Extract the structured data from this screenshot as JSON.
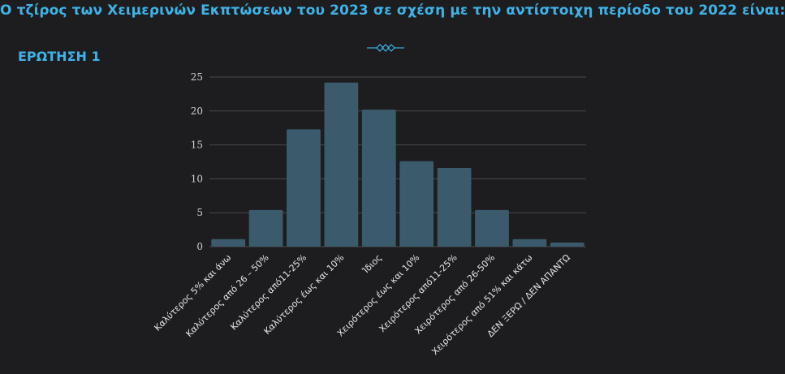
{
  "title": "Ο τζίρος των Χειμερινών Εκπτώσεων του 2023 σε σχέση με την αντίστοιχη περίοδο του 2022 είναι:",
  "question_label": "ΕΡΩΤΗΣΗ 1",
  "colors": {
    "accent": "#3fb3e8",
    "bar": "#3b5b6c",
    "grid": "#4a4a4e",
    "background": "#1d1d1f"
  },
  "chart_data": {
    "type": "bar",
    "title": "",
    "xlabel": "",
    "ylabel": "",
    "ylim": [
      0,
      25
    ],
    "yticks": [
      0,
      5,
      10,
      15,
      20,
      25
    ],
    "grid": true,
    "categories": [
      "Καλύτερος 5% και άνω",
      "Καλύτερος από 26 – 50%",
      "Καλύτερος από11-25%",
      "Καλύτερος έως και 10%",
      "Ίδιος",
      "Χειρότερος έως και 10%",
      "Χειρότερος από11-25%",
      "Χειρότερος από 26-50%",
      "Χειρότερος από 51% και κάτω",
      "ΔΕΝ ΞΕΡΩ / ΔΕΝ ΑΠΑΝΤΩ"
    ],
    "values": [
      1.1,
      5.4,
      17.3,
      24.2,
      20.2,
      12.6,
      11.6,
      5.4,
      1.1,
      0.6
    ]
  }
}
